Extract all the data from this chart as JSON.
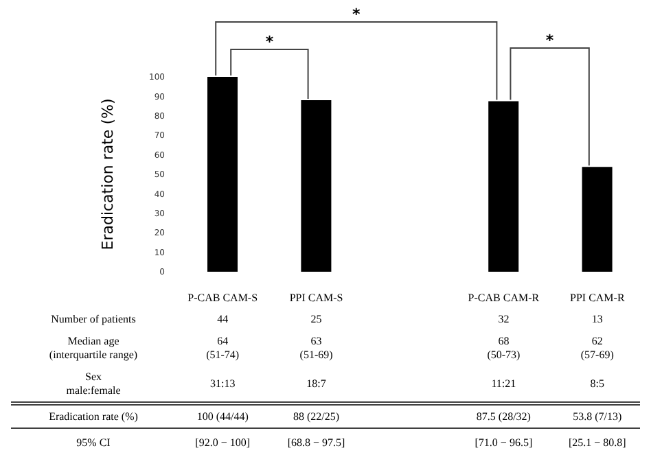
{
  "chart_data": {
    "type": "bar",
    "ylabel": "Eradication rate (%)",
    "categories": [
      "P-CAB CAM-S",
      "PPI CAM-S",
      null,
      "P-CAB CAM-R",
      "PPI CAM-R"
    ],
    "values": [
      100,
      88,
      null,
      87.5,
      53.8
    ],
    "color": "#000000",
    "value_labels": [
      "100 (44/44)",
      "88 (22/25)",
      null,
      "87.5 (28/32)",
      "53.8  (7/13)"
    ],
    "ylim": [
      0,
      100
    ],
    "yticks": [
      0,
      10,
      20,
      30,
      40,
      50,
      60,
      70,
      80,
      90,
      100
    ],
    "grid": false,
    "annotations": [
      "*",
      "*",
      "*",
      "Number of patients",
      "44",
      "25",
      "32",
      "13",
      "Median age\n(interquartile range)",
      "64\n(51-74)",
      "63\n(51-69)",
      "68\n(50-73)",
      "62\n(57-69)",
      "Sex\nmale:female",
      "31:13",
      "18:7",
      "11:21",
      "8:5",
      "Eradication rate (%)",
      "95% CI",
      "[92.0 − 100]",
      "[68.8 − 97.5]",
      "[71.0 − 96.5]",
      "[25.1 − 80.8]"
    ]
  }
}
